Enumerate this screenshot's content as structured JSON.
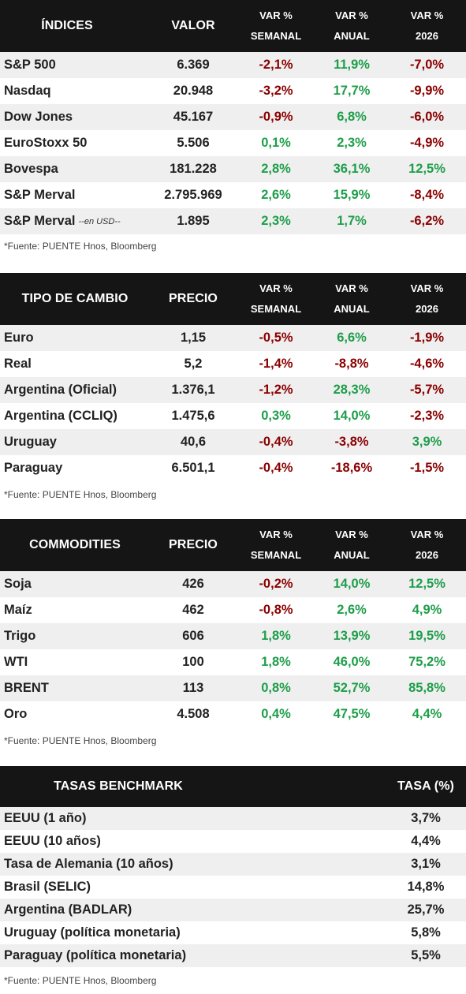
{
  "indices": {
    "headers": [
      "ÍNDICES",
      "VALOR",
      [
        "VAR %",
        "SEMANAL"
      ],
      [
        "VAR %",
        "ANUAL"
      ],
      [
        "VAR %",
        "2026"
      ]
    ],
    "rows": [
      {
        "name": "S&P 500",
        "suffix": "",
        "value": "6.369",
        "weekly": "-2,1%",
        "annual": "11,9%",
        "ytd": "-7,0%"
      },
      {
        "name": "Nasdaq",
        "suffix": "",
        "value": "20.948",
        "weekly": "-3,2%",
        "annual": "17,7%",
        "ytd": "-9,9%"
      },
      {
        "name": "Dow Jones",
        "suffix": "",
        "value": "45.167",
        "weekly": "-0,9%",
        "annual": "6,8%",
        "ytd": "-6,0%"
      },
      {
        "name": "EuroStoxx 50",
        "suffix": "",
        "value": "5.506",
        "weekly": "0,1%",
        "annual": "2,3%",
        "ytd": "-4,9%"
      },
      {
        "name": "Bovespa",
        "suffix": "",
        "value": "181.228",
        "weekly": "2,8%",
        "annual": "36,1%",
        "ytd": "12,5%"
      },
      {
        "name": "S&P Merval",
        "suffix": "",
        "value": "2.795.969",
        "weekly": "2,6%",
        "annual": "15,9%",
        "ytd": "-8,4%"
      },
      {
        "name": "S&P Merval",
        "suffix": "--en USD--",
        "value": "1.895",
        "weekly": "2,3%",
        "annual": "1,7%",
        "ytd": "-6,2%"
      }
    ],
    "source": "*Fuente: PUENTE Hnos, Bloomberg"
  },
  "fx": {
    "headers": [
      "TIPO DE CAMBIO",
      "PRECIO",
      [
        "VAR %",
        "SEMANAL"
      ],
      [
        "VAR %",
        "ANUAL"
      ],
      [
        "VAR %",
        "2026"
      ]
    ],
    "rows": [
      {
        "name": "Euro",
        "value": "1,15",
        "weekly": "-0,5%",
        "annual": "6,6%",
        "ytd": "-1,9%"
      },
      {
        "name": "Real",
        "value": "5,2",
        "weekly": "-1,4%",
        "annual": "-8,8%",
        "ytd": "-4,6%"
      },
      {
        "name": "Argentina (Oficial)",
        "value": "1.376,1",
        "weekly": "-1,2%",
        "annual": "28,3%",
        "ytd": "-5,7%"
      },
      {
        "name": "Argentina (CCLIQ)",
        "value": "1.475,6",
        "weekly": "0,3%",
        "annual": "14,0%",
        "ytd": "-2,3%"
      },
      {
        "name": "Uruguay",
        "value": "40,6",
        "weekly": "-0,4%",
        "annual": "-3,8%",
        "ytd": "3,9%"
      },
      {
        "name": "Paraguay",
        "value": "6.501,1",
        "weekly": "-0,4%",
        "annual": "-18,6%",
        "ytd": "-1,5%"
      }
    ],
    "source": "*Fuente: PUENTE Hnos, Bloomberg"
  },
  "commodities": {
    "headers": [
      "COMMODITIES",
      "PRECIO",
      [
        "VAR %",
        "SEMANAL"
      ],
      [
        "VAR %",
        "ANUAL"
      ],
      [
        "VAR %",
        "2026"
      ]
    ],
    "rows": [
      {
        "name": "Soja",
        "value": "426",
        "weekly": "-0,2%",
        "annual": "14,0%",
        "ytd": "12,5%"
      },
      {
        "name": "Maíz",
        "value": "462",
        "weekly": "-0,8%",
        "annual": "2,6%",
        "ytd": "4,9%"
      },
      {
        "name": "Trigo",
        "value": "606",
        "weekly": "1,8%",
        "annual": "13,9%",
        "ytd": "19,5%"
      },
      {
        "name": "WTI",
        "value": "100",
        "weekly": "1,8%",
        "annual": "46,0%",
        "ytd": "75,2%"
      },
      {
        "name": "BRENT",
        "value": "113",
        "weekly": "0,8%",
        "annual": "52,7%",
        "ytd": "85,8%"
      },
      {
        "name": "Oro",
        "value": "4.508",
        "weekly": "0,4%",
        "annual": "47,5%",
        "ytd": "4,4%"
      }
    ],
    "source": "*Fuente: PUENTE Hnos, Bloomberg"
  },
  "rates": {
    "headers": [
      "TASAS BENCHMARK",
      "TASA (%)"
    ],
    "rows": [
      {
        "name": "EEUU (1 año)",
        "value": "3,7%"
      },
      {
        "name": "EEUU (10 años)",
        "value": "4,4%"
      },
      {
        "name": "Tasa de Alemania (10 años)",
        "value": "3,1%"
      },
      {
        "name": "Brasil (SELIC)",
        "value": "14,8%"
      },
      {
        "name": "Argentina (BADLAR)",
        "value": "25,7%"
      },
      {
        "name": "Uruguay (política monetaria)",
        "value": "5,8%"
      },
      {
        "name": "Paraguay (política monetaria)",
        "value": "5,5%"
      }
    ],
    "source": "*Fuente: PUENTE Hnos, Bloomberg"
  },
  "colors": {
    "negative": "#8b0000",
    "positive": "#1e9e4a",
    "header_bg": "#151515",
    "row_alt": "#efefef"
  }
}
